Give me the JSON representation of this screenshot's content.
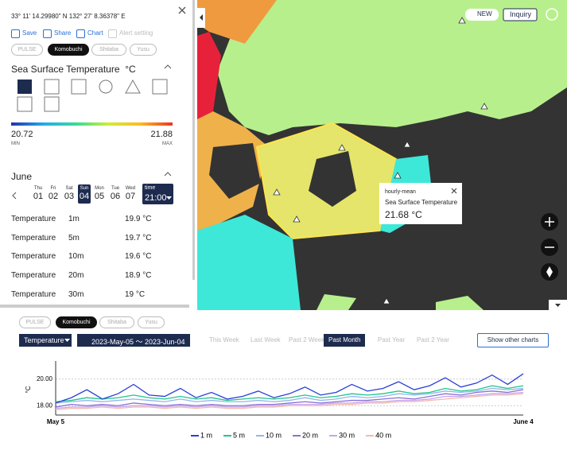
{
  "panel": {
    "coords": "33° 11' 14.29980\" N 132° 27' 8.36378\" E",
    "actions": [
      {
        "label": "Save",
        "enabled": true
      },
      {
        "label": "Share",
        "enabled": true
      },
      {
        "label": "Chart",
        "enabled": true
      },
      {
        "label": "Alert setting",
        "enabled": false
      }
    ],
    "stations": [
      {
        "name": "PULSE",
        "active": false
      },
      {
        "name": "Komobuchi",
        "active": true
      },
      {
        "name": "Shitaba",
        "active": false
      },
      {
        "name": "Yusu",
        "active": false
      }
    ],
    "layer_title": "Sea Surface Temperature",
    "unit": "°C",
    "colorbar": {
      "min": 20.72,
      "max": 21.88,
      "min_label": "MIN",
      "max_label": "MAX"
    },
    "month": "June",
    "days": [
      {
        "dow": "Thu",
        "day": "01"
      },
      {
        "dow": "Fri",
        "day": "02"
      },
      {
        "dow": "Sat",
        "day": "03"
      },
      {
        "dow": "Sun",
        "day": "04"
      },
      {
        "dow": "Mon",
        "day": "05"
      },
      {
        "dow": "Tue",
        "day": "06"
      },
      {
        "dow": "Wed",
        "day": "07"
      }
    ],
    "selected_day": 3,
    "time_label": "time",
    "time": "21:00",
    "rows": [
      [
        "Temperature",
        "1m",
        "19.9 °C"
      ],
      [
        "Temperature",
        "5m",
        "19.7 °C"
      ],
      [
        "Temperature",
        "10m",
        "19.6 °C"
      ],
      [
        "Temperature",
        "20m",
        "18.9 °C"
      ],
      [
        "Temperature",
        "30m",
        "19 °C"
      ]
    ]
  },
  "map": {
    "new_label": "NEW",
    "inquiry": "Inquiry",
    "popup": {
      "period": "hourly-mean",
      "title": "Sea Surface Temperature",
      "value": "21.68 °C"
    }
  },
  "toolbar": {
    "metric": "Temperature",
    "date_range": "2023-May-05 ～ 2023-Jun-04",
    "ranges": [
      {
        "label": "This Week",
        "active": false
      },
      {
        "label": "Last Week",
        "active": false
      },
      {
        "label": "Past 2 Week",
        "active": false
      },
      {
        "label": "Past Month",
        "active": true
      },
      {
        "label": "Past Year",
        "active": false
      },
      {
        "label": "Past 2 Year",
        "active": false
      }
    ],
    "show_other": "Show other charts"
  },
  "chart_data": {
    "type": "line",
    "y_label": "°C",
    "categories": [
      "May 5",
      null,
      null,
      null,
      null,
      null,
      null,
      null,
      null,
      null,
      null,
      null,
      null,
      null,
      null,
      null,
      null,
      null,
      null,
      null,
      null,
      null,
      null,
      null,
      null,
      null,
      null,
      null,
      null,
      null,
      "June 4"
    ],
    "series": [
      {
        "name": "1 m",
        "color": "#2b3fd6",
        "values": [
          18.2,
          18.6,
          19.2,
          18.5,
          18.9,
          19.6,
          18.8,
          18.7,
          19.3,
          18.6,
          19.0,
          18.5,
          18.7,
          19.1,
          18.6,
          18.9,
          19.4,
          18.8,
          19.0,
          19.6,
          19.1,
          19.3,
          19.8,
          19.2,
          19.5,
          20.1,
          19.4,
          19.7,
          20.3,
          19.6,
          20.4
        ]
      },
      {
        "name": "5 m",
        "color": "#22c38e",
        "values": [
          18.3,
          18.4,
          18.6,
          18.5,
          18.6,
          18.8,
          18.6,
          18.5,
          18.7,
          18.5,
          18.6,
          18.4,
          18.5,
          18.6,
          18.5,
          18.6,
          18.8,
          18.6,
          18.7,
          18.9,
          18.8,
          18.9,
          19.1,
          18.9,
          19.0,
          19.3,
          19.1,
          19.2,
          19.5,
          19.3,
          19.5
        ]
      },
      {
        "name": "10 m",
        "color": "#8fb8e8",
        "values": [
          18.2,
          18.3,
          18.4,
          18.3,
          18.4,
          18.5,
          18.4,
          18.3,
          18.5,
          18.3,
          18.4,
          18.3,
          18.3,
          18.4,
          18.3,
          18.4,
          18.6,
          18.4,
          18.5,
          18.7,
          18.6,
          18.7,
          18.9,
          18.8,
          18.9,
          19.1,
          19.0,
          19.1,
          19.3,
          19.2,
          19.3
        ]
      },
      {
        "name": "20 m",
        "color": "#8a6fd8",
        "values": [
          17.9,
          18.1,
          18.0,
          18.1,
          18.0,
          18.2,
          18.1,
          18.0,
          18.1,
          18.0,
          18.1,
          18.0,
          18.0,
          18.1,
          18.1,
          18.2,
          18.3,
          18.2,
          18.3,
          18.4,
          18.4,
          18.5,
          18.6,
          18.5,
          18.7,
          18.9,
          18.8,
          19.0,
          19.1,
          19.0,
          19.2
        ]
      },
      {
        "name": "30 m",
        "color": "#c6a6ea",
        "values": [
          17.8,
          17.9,
          17.9,
          18.0,
          17.9,
          18.0,
          18.0,
          17.9,
          18.0,
          17.9,
          18.0,
          17.9,
          17.9,
          18.0,
          18.0,
          18.1,
          18.1,
          18.1,
          18.2,
          18.2,
          18.3,
          18.3,
          18.4,
          18.4,
          18.5,
          18.7,
          18.7,
          18.8,
          18.9,
          18.9,
          19.0
        ]
      },
      {
        "name": "40 m",
        "color": "#f4b9b0",
        "values": [
          17.7,
          17.8,
          17.8,
          17.9,
          17.8,
          17.9,
          17.9,
          17.8,
          17.9,
          17.8,
          17.9,
          17.8,
          17.8,
          17.9,
          17.9,
          18.0,
          18.0,
          18.0,
          18.1,
          18.1,
          18.2,
          18.2,
          18.3,
          18.3,
          18.4,
          18.5,
          18.6,
          18.7,
          18.8,
          18.8,
          18.9
        ]
      }
    ],
    "ylim": [
      17.3,
      21.0
    ],
    "yticks": [
      {
        "value": 18,
        "label": "18.00"
      },
      {
        "value": 20,
        "label": "20.00"
      }
    ],
    "grid": true
  }
}
